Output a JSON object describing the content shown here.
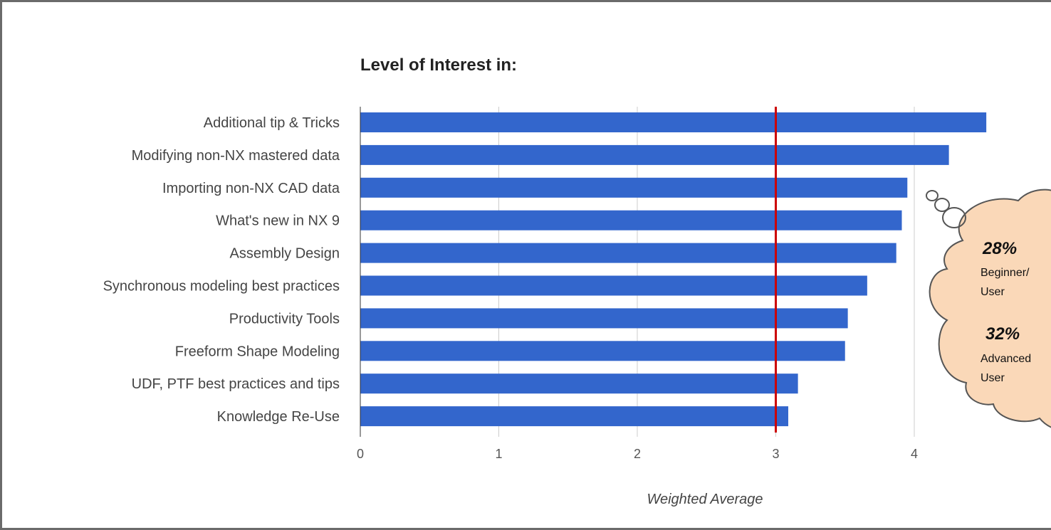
{
  "chart_data": {
    "type": "bar",
    "orientation": "horizontal",
    "title": "Level of Interest in:",
    "xlabel": "Weighted Average",
    "ylabel": "",
    "categories": [
      "Additional tip & Tricks",
      "Modifying non-NX mastered data",
      "Importing non-NX CAD data",
      "What's new in NX 9",
      "Assembly Design",
      "Synchronous modeling best practices",
      "Productivity Tools",
      "Freeform Shape Modeling",
      "UDF, PTF best practices and tips",
      "Knowledge Re-Use"
    ],
    "values": [
      4.52,
      4.25,
      3.95,
      3.91,
      3.87,
      3.66,
      3.52,
      3.5,
      3.16,
      3.09
    ],
    "xlim": [
      0,
      4.7
    ],
    "xticks": [
      "0",
      "1",
      "2",
      "3",
      "4"
    ],
    "reference_line": {
      "value": 3,
      "color": "#cc0000"
    },
    "grid": true,
    "bar_color": "#3366cc",
    "legend": "none"
  },
  "callout": {
    "shape": "thought-bubble",
    "fill_color": "#fad8b8",
    "outline_color": "#555555",
    "items": [
      {
        "percent": "28%",
        "label_line1": "Beginner/",
        "label_line2": "User"
      },
      {
        "percent": "32%",
        "label_line1": "Advanced",
        "label_line2": "User"
      }
    ]
  }
}
